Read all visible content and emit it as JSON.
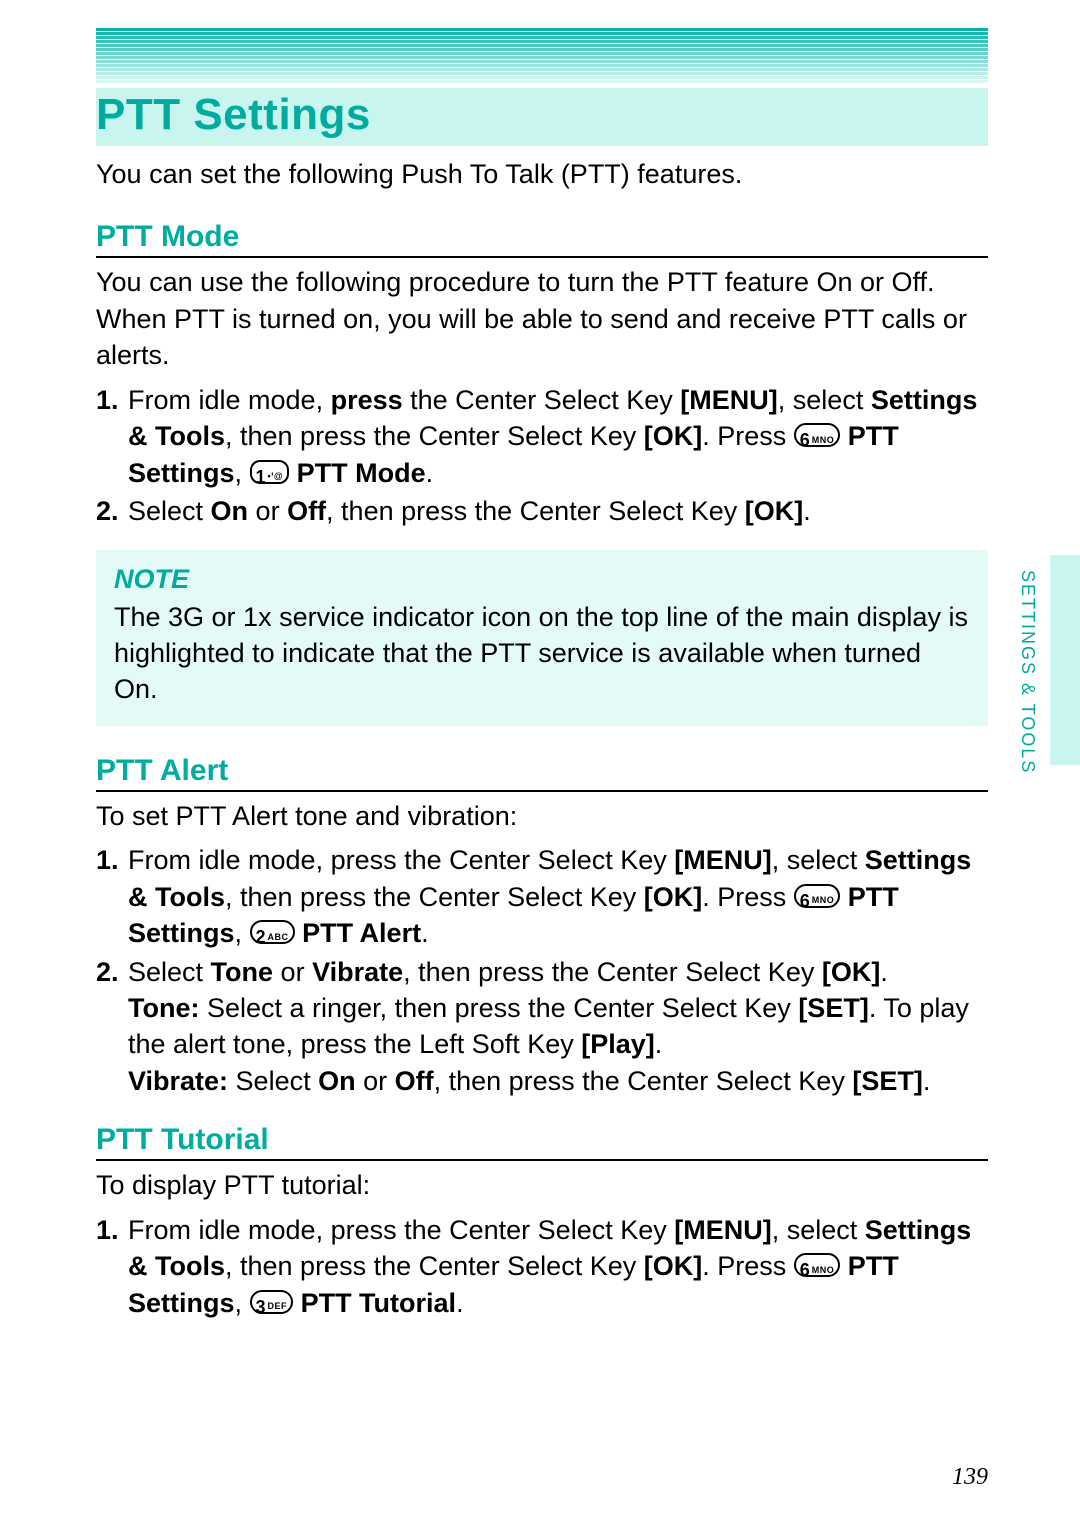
{
  "colors": {
    "accent": "#00aca0",
    "stripe_bg": "#c9f5ef",
    "note_bg": "#e3faf7",
    "text": "#000000",
    "page_bg": "#ffffff",
    "rule": "#000000"
  },
  "topbars": {
    "count": 14,
    "from": "#06b4a6",
    "to": "#d9f8f4"
  },
  "title": "PTT Settings",
  "intro": "You can set the following Push To Talk (PTT) features.",
  "side_label": "SETTINGS & TOOLS",
  "page_number": "139",
  "ptt_mode": {
    "heading": "PTT Mode",
    "desc": "You can use the following procedure to turn the PTT feature On or Off. When PTT is turned on, you will be able to send and receive PTT calls or alerts.",
    "step1_a": "From idle mode, ",
    "step1_press": "press",
    "step1_b": " the Center Select Key ",
    "step1_menu": "[MENU]",
    "step1_c": ", select ",
    "step1_st": "Settings & Tools",
    "step1_d": ", then press the Center Select Key ",
    "step1_ok": "[OK]",
    "step1_e": ". Press ",
    "key6_digit": "6",
    "key6_letters": "MNO",
    "step1_ptt_settings": " PTT Settings",
    "step1_comma": ", ",
    "key1_digit": "1",
    "key1_letters": "",
    "step1_ptt_mode": " PTT Mode",
    "step1_period": ".",
    "step2_a": "Select ",
    "step2_on": "On",
    "step2_or": " or ",
    "step2_off": "Off",
    "step2_b": ", then press the Center Select Key ",
    "step2_ok": "[OK]",
    "step2_period": "."
  },
  "note": {
    "title": "NOTE",
    "body": "The 3G or 1x service indicator icon on the top line of the main display is highlighted to indicate that the PTT service is available when turned On."
  },
  "ptt_alert": {
    "heading": "PTT Alert",
    "desc": "To set PTT Alert tone and vibration:",
    "step1_a": "From idle mode, press the Center Select Key ",
    "step1_menu": "[MENU]",
    "step1_b": ", select ",
    "step1_st": "Settings & Tools",
    "step1_c": ", then press the Center Select Key ",
    "step1_ok": "[OK]",
    "step1_d": ". Press ",
    "key6_digit": "6",
    "key6_letters": "MNO",
    "step1_ptt_settings": " PTT Settings",
    "step1_comma": ", ",
    "key2_digit": "2",
    "key2_letters": "ABC",
    "step1_ptt_alert": " PTT Alert",
    "step1_period": ".",
    "step2_a": "Select ",
    "step2_tone": "Tone",
    "step2_or": " or ",
    "step2_vibrate": "Vibrate",
    "step2_b": ", then press the Center Select Key ",
    "step2_ok": "[OK]",
    "step2_period": ".",
    "tone_label": "Tone:",
    "tone_a": " Select a ringer, then press the Center Select Key ",
    "tone_set": "[SET]",
    "tone_b": ". To play the alert tone, press the Left Soft Key ",
    "tone_play": "[Play]",
    "tone_period": ".",
    "vib_label": "Vibrate:",
    "vib_a": " Select ",
    "vib_on": "On",
    "vib_or": " or ",
    "vib_off": "Off",
    "vib_b": ", then press the Center Select Key ",
    "vib_set": "[SET]",
    "vib_period": "."
  },
  "ptt_tutorial": {
    "heading": "PTT Tutorial",
    "desc": "To display PTT tutorial:",
    "step1_a": "From idle mode, press the Center Select Key ",
    "step1_menu": "[MENU]",
    "step1_b": ", select ",
    "step1_st": "Settings & Tools",
    "step1_c": ", then press the Center Select Key ",
    "step1_ok": "[OK]",
    "step1_d": ". Press ",
    "key6_digit": "6",
    "key6_letters": "MNO",
    "step1_ptt_settings": " PTT Settings",
    "step1_comma": ", ",
    "key3_digit": "3",
    "key3_letters": "DEF",
    "step1_ptt_tutorial": " PTT Tutorial",
    "step1_period": "."
  }
}
